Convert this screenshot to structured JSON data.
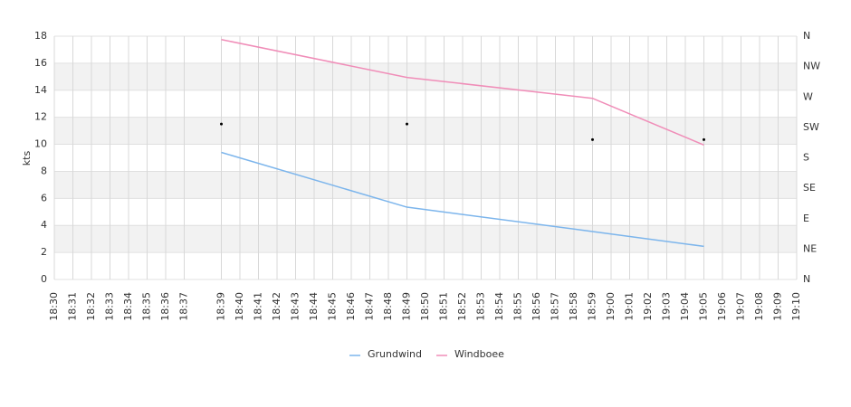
{
  "chart_data": {
    "type": "line",
    "ylabel": "kts",
    "x": [
      "18:39",
      "18:49",
      "18:59",
      "19:05"
    ],
    "series": [
      {
        "name": "Grundwind",
        "color": "#7cb5ec",
        "values": [
          9.4,
          5.35,
          3.55,
          2.45
        ]
      },
      {
        "name": "Windboee",
        "color": "#f08db8",
        "values": [
          17.75,
          14.95,
          13.4,
          9.95
        ]
      }
    ],
    "direction": {
      "axis": "y2",
      "color": "#000000",
      "values": [
        230,
        230,
        207,
        207
      ]
    },
    "xlim": [
      "18:30",
      "19:10"
    ],
    "xticks": [
      "18:30",
      "18:31",
      "18:32",
      "18:33",
      "18:34",
      "18:35",
      "18:36",
      "18:37",
      "18:39",
      "18:40",
      "18:41",
      "18:42",
      "18:43",
      "18:44",
      "18:45",
      "18:46",
      "18:47",
      "18:48",
      "18:49",
      "18:50",
      "18:51",
      "18:52",
      "18:53",
      "18:54",
      "18:55",
      "18:56",
      "18:57",
      "18:58",
      "18:59",
      "19:00",
      "19:01",
      "19:02",
      "19:03",
      "19:04",
      "19:05",
      "19:06",
      "19:07",
      "19:08",
      "19:09",
      "19:10"
    ],
    "ylim": [
      0,
      18
    ],
    "yticks": [
      0,
      2,
      4,
      6,
      8,
      10,
      12,
      14,
      16,
      18
    ],
    "y2lim": [
      0,
      360
    ],
    "y2ticks": [
      {
        "value": 0,
        "label": "N"
      },
      {
        "value": 45,
        "label": "NE"
      },
      {
        "value": 90,
        "label": "E"
      },
      {
        "value": 135,
        "label": "SE"
      },
      {
        "value": 180,
        "label": "S"
      },
      {
        "value": 225,
        "label": "SW"
      },
      {
        "value": 270,
        "label": "W"
      },
      {
        "value": 315,
        "label": "NW"
      },
      {
        "value": 360,
        "label": "N"
      }
    ],
    "grid": true,
    "legend": "bottom"
  }
}
